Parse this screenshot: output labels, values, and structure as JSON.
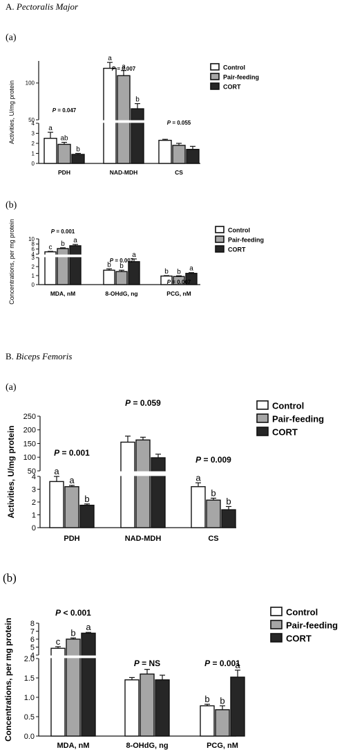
{
  "sections": [
    {
      "prefix": "A. ",
      "species": "Pectoralis Major"
    },
    {
      "prefix": "B. ",
      "species": "Biceps Femoris"
    }
  ],
  "legend": [
    "Control",
    "Pair-feeding",
    "CORT"
  ],
  "colors": {
    "Control": "#ffffff",
    "Pair-feeding": "#a6a6a6",
    "CORT": "#262626",
    "stroke": "#111111"
  },
  "chart_data": [
    {
      "panel": "(a)",
      "type": "bar",
      "ylabel": "Activities, U/mg protein",
      "categories": [
        "PDH",
        "NAD-MDH",
        "CS"
      ],
      "broken_axis": true,
      "lower_ylim": [
        0,
        4
      ],
      "upper_ylim": [
        50,
        130
      ],
      "lower_ticks": [
        "0",
        "1",
        "2",
        "3",
        "4"
      ],
      "upper_ticks": [
        "50",
        "100"
      ],
      "series": [
        {
          "name": "Control",
          "values": [
            2.5,
            120,
            2.3
          ],
          "errors": [
            0.6,
            8,
            0.1
          ]
        },
        {
          "name": "Pair-feeding",
          "values": [
            1.9,
            110,
            1.8
          ],
          "errors": [
            0.2,
            7,
            0.2
          ]
        },
        {
          "name": "CORT",
          "values": [
            0.9,
            65,
            1.4
          ],
          "errors": [
            0.1,
            7,
            0.3
          ]
        }
      ],
      "letters": [
        [
          "a",
          "ab",
          "b"
        ],
        [
          "a",
          "a",
          "b"
        ],
        [
          "",
          "",
          ""
        ]
      ],
      "pvalues": [
        "P = 0.047",
        "P = 0.007",
        "P = 0.055"
      ]
    },
    {
      "panel": "(b)",
      "type": "bar",
      "ylabel": "Concentrations, per mg protein",
      "categories": [
        "MDA, nM",
        "8-OHdG, ng",
        "PCG, nM"
      ],
      "broken_axis": true,
      "lower_ylim": [
        0,
        3
      ],
      "upper_ylim": [
        4,
        10
      ],
      "lower_ticks": [
        "0",
        "1",
        "2",
        "3"
      ],
      "upper_ticks": [
        "4",
        "6",
        "8",
        "10"
      ],
      "series": [
        {
          "name": "Control",
          "values": [
            4.9,
            1.6,
            0.95
          ],
          "errors": [
            0.2,
            0.15,
            0.05
          ]
        },
        {
          "name": "Pair-feeding",
          "values": [
            6.2,
            1.45,
            0.9
          ],
          "errors": [
            0.3,
            0.15,
            0.08
          ]
        },
        {
          "name": "CORT",
          "values": [
            7.3,
            2.55,
            1.25
          ],
          "errors": [
            0.5,
            0.3,
            0.08
          ]
        }
      ],
      "letters": [
        [
          "c",
          "b",
          "a"
        ],
        [
          "b",
          "b",
          "a"
        ],
        [
          "b",
          "b",
          "a"
        ]
      ],
      "pvalues": [
        "P = 0.001",
        "P = 0.007",
        "P = 0.007"
      ]
    },
    {
      "panel": "(a)",
      "type": "bar",
      "ylabel": "Activities, U/mg protein",
      "categories": [
        "PDH",
        "NAD-MDH",
        "CS"
      ],
      "broken_axis": true,
      "lower_ylim": [
        0,
        4
      ],
      "upper_ylim": [
        50,
        250
      ],
      "lower_ticks": [
        "0",
        "1",
        "2",
        "3",
        "4"
      ],
      "upper_ticks": [
        "50",
        "100",
        "150",
        "200",
        "250"
      ],
      "series": [
        {
          "name": "Control",
          "values": [
            3.6,
            155,
            3.2
          ],
          "errors": [
            0.4,
            22,
            0.3
          ]
        },
        {
          "name": "Pair-feeding",
          "values": [
            3.2,
            163,
            2.15
          ],
          "errors": [
            0.1,
            10,
            0.15
          ]
        },
        {
          "name": "CORT",
          "values": [
            1.75,
            98,
            1.4
          ],
          "errors": [
            0.1,
            13,
            0.25
          ]
        }
      ],
      "letters": [
        [
          "a",
          "a",
          "b"
        ],
        [
          "",
          "",
          ""
        ],
        [
          "a",
          "b",
          "b"
        ]
      ],
      "pvalues": [
        "P = 0.001",
        "P = 0.059",
        "P = 0.009"
      ]
    },
    {
      "panel": "(b)",
      "type": "bar",
      "ylabel": "Concentrations, per mg protein",
      "categories": [
        "MDA, nM",
        "8-OHdG, ng",
        "PCG, nM"
      ],
      "broken_axis": true,
      "lower_ylim": [
        0,
        2
      ],
      "upper_ylim": [
        4,
        8
      ],
      "lower_ticks": [
        "0.0",
        "0.5",
        "1.0",
        "1.5",
        "2.0"
      ],
      "upper_ticks": [
        "4",
        "5",
        "6",
        "7",
        "8"
      ],
      "series": [
        {
          "name": "Control",
          "values": [
            4.85,
            1.45,
            0.78
          ],
          "errors": [
            0.2,
            0.06,
            0.04
          ]
        },
        {
          "name": "Pair-feeding",
          "values": [
            6.0,
            1.6,
            0.68
          ],
          "errors": [
            0.15,
            0.12,
            0.1
          ]
        },
        {
          "name": "CORT",
          "values": [
            6.75,
            1.45,
            1.52
          ],
          "errors": [
            0.1,
            0.12,
            0.18
          ]
        }
      ],
      "letters": [
        [
          "c",
          "b",
          "a"
        ],
        [
          "",
          "",
          ""
        ],
        [
          "b",
          "b",
          "a"
        ]
      ],
      "pvalues": [
        "P < 0.001",
        "P = NS",
        "P = 0.001"
      ]
    }
  ]
}
